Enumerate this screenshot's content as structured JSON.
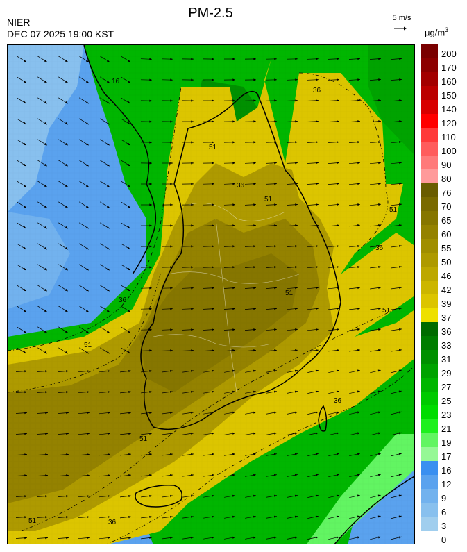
{
  "header": {
    "agency": "NIER",
    "datetime": "DEC 07 2025 19:00 KST",
    "title": "PM-2.5",
    "wind_reference": "5 m/s",
    "unit_main": "μg/m",
    "unit_sup": "3"
  },
  "colorbar": {
    "labels": [
      "200",
      "170",
      "160",
      "150",
      "140",
      "120",
      "110",
      "100",
      "90",
      "80",
      "76",
      "70",
      "65",
      "60",
      "55",
      "50",
      "46",
      "42",
      "39",
      "37",
      "36",
      "33",
      "31",
      "29",
      "27",
      "25",
      "23",
      "21",
      "19",
      "17",
      "16",
      "12",
      "9",
      "6",
      "3",
      "0"
    ],
    "colors": [
      "#7a0000",
      "#8c0000",
      "#a30000",
      "#bb0000",
      "#d80000",
      "#ff0000",
      "#ff3a3a",
      "#ff5c5c",
      "#ff7a7a",
      "#ff9a9a",
      "#6a5c00",
      "#7a6a00",
      "#867600",
      "#948200",
      "#a08e00",
      "#ae9a00",
      "#bda800",
      "#ccb600",
      "#dcc500",
      "#eee000",
      "#006b00",
      "#007d00",
      "#009000",
      "#00a300",
      "#00b600",
      "#00ca00",
      "#00dc00",
      "#1ef01e",
      "#62f562",
      "#96f896",
      "#3a8ff0",
      "#5aa2ee",
      "#72b2ee",
      "#88c0ee",
      "#a0ceee"
    ]
  },
  "map": {
    "contour_labels": [
      "16",
      "36",
      "51",
      "36",
      "51",
      "51",
      "36",
      "51",
      "36",
      "51",
      "51",
      "36",
      "51",
      "36",
      "51"
    ],
    "fill_colors": {
      "ocean_clean": "#5aa2ee",
      "ocean_light": "#88c0ee",
      "green": "#00b600",
      "green_dark": "#009000",
      "yellow": "#dcc500",
      "olive": "#a08e00",
      "olive_dark": "#867600"
    }
  }
}
